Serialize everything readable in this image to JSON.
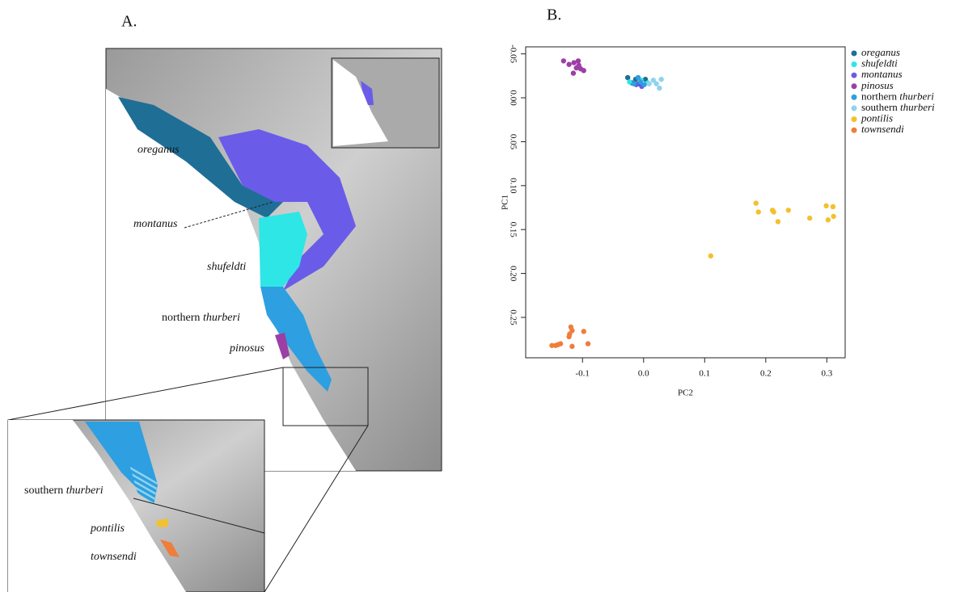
{
  "map": {
    "panel_label": "A.",
    "labels": [
      "oreganus",
      "montanus",
      "shufeldti",
      "northern thurberi",
      "pinosus",
      "southern thurberi",
      "pontilis",
      "townsendi"
    ]
  },
  "chart_data": {
    "type": "scatter",
    "panel_label": "B.",
    "x_label": "PC2",
    "y_label": "PC1",
    "xlim": [
      -0.193,
      0.33
    ],
    "ylim": [
      0.296,
      -0.058
    ],
    "xticks": [
      -0.1,
      {
        "value": 0,
        "label": "0.0"
      },
      0.1,
      0.2,
      0.3
    ],
    "yticks": [
      {
        "value": -0.05,
        "label": "-0.05"
      },
      {
        "value": 0,
        "label": "0.00"
      },
      {
        "value": 0.05,
        "label": "0.05"
      },
      {
        "value": 0.1,
        "label": "0.10"
      },
      {
        "value": 0.15,
        "label": "0.15"
      },
      {
        "value": 0.2,
        "label": "0.20"
      },
      {
        "value": 0.25,
        "label": "0.25"
      }
    ],
    "series": [
      {
        "name": "oreganus",
        "color": "#1f6e96",
        "x": [
          -0.026,
          -0.019,
          -0.008,
          0.003,
          -0.013
        ],
        "values": [
          -0.023,
          -0.017,
          -0.016,
          -0.021,
          -0.021
        ]
      },
      {
        "name": "shufeldti",
        "color": "#2ee6e6",
        "x": [
          -0.023,
          -0.004,
          0.007
        ],
        "values": [
          -0.018,
          -0.02,
          -0.017
        ]
      },
      {
        "name": "montanus",
        "color": "#6a5ce8",
        "x": [
          -0.012,
          -0.003
        ],
        "values": [
          -0.015,
          -0.013
        ]
      },
      {
        "name": "pinosus",
        "color": "#9b3fa6",
        "x": [
          -0.131,
          -0.122,
          -0.114,
          -0.107,
          -0.11,
          -0.103,
          -0.098,
          -0.115,
          -0.106
        ],
        "values": [
          -0.042,
          -0.038,
          -0.04,
          -0.042,
          -0.034,
          -0.033,
          -0.031,
          -0.028,
          -0.037
        ]
      },
      {
        "name": "northern thurberi",
        "color": "#2e9fe0",
        "x": [
          -0.016,
          -0.005,
          0.001,
          -0.009
        ],
        "values": [
          -0.016,
          -0.018,
          -0.015,
          -0.023
        ]
      },
      {
        "name": "southern thurberi",
        "color": "#8fd3ee",
        "x": [
          0.009,
          0.016,
          0.021,
          0.026,
          0.029
        ],
        "values": [
          -0.016,
          -0.02,
          -0.016,
          -0.011,
          -0.021
        ]
      },
      {
        "name": "pontilis",
        "color": "#f2c12e",
        "x": [
          0.184,
          0.188,
          0.211,
          0.213,
          0.22,
          0.237,
          0.272,
          0.299,
          0.31,
          0.302,
          0.311,
          0.11
        ],
        "values": [
          0.12,
          0.13,
          0.128,
          0.13,
          0.141,
          0.128,
          0.137,
          0.123,
          0.124,
          0.139,
          0.135,
          0.18
        ]
      },
      {
        "name": "townsendi",
        "color": "#ef7d3c",
        "x": [
          -0.15,
          -0.144,
          -0.14,
          -0.136,
          -0.119,
          -0.117,
          -0.121,
          -0.122,
          -0.117,
          -0.098,
          -0.091
        ],
        "values": [
          0.282,
          0.282,
          0.281,
          0.28,
          0.261,
          0.265,
          0.269,
          0.272,
          0.283,
          0.266,
          0.28
        ]
      }
    ]
  }
}
